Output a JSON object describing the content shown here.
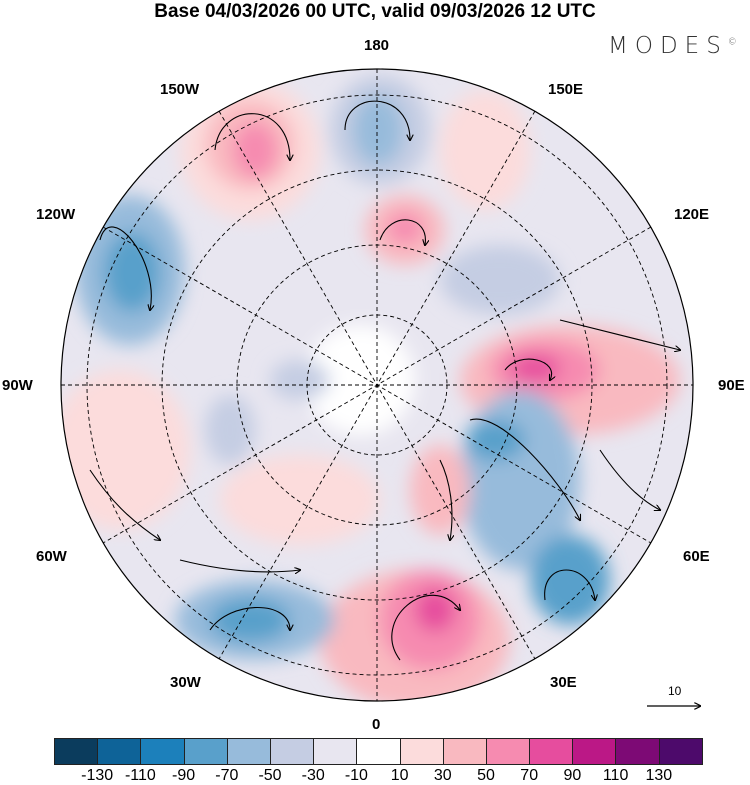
{
  "title": "Base 04/03/2026 00 UTC, valid 09/03/2026 12 UTC",
  "logo": "MODES",
  "logo_mark": "©",
  "longitude_labels": {
    "n180": "180",
    "w150": "150W",
    "e150": "150E",
    "w120": "120W",
    "e120": "120E",
    "w90": "90W",
    "e90": "90E",
    "w60": "60W",
    "e60": "60E",
    "w30": "30W",
    "e30": "30E",
    "zero": "0"
  },
  "reference_vector": "10",
  "colorbar": {
    "colors": [
      "#0b3c5d",
      "#0e6398",
      "#1c80bb",
      "#59a0cb",
      "#97bbdb",
      "#c5cde3",
      "#e8e6f0",
      "#ffffff",
      "#fcdcdc",
      "#f9b9c0",
      "#f68bb0",
      "#e64d9e",
      "#bb1886",
      "#7d0a75",
      "#4d0a6b"
    ],
    "ticks": [
      "-130",
      "-110",
      "-90",
      "-70",
      "-50",
      "-30",
      "-10",
      "10",
      "30",
      "50",
      "70",
      "90",
      "110",
      "130"
    ]
  }
}
